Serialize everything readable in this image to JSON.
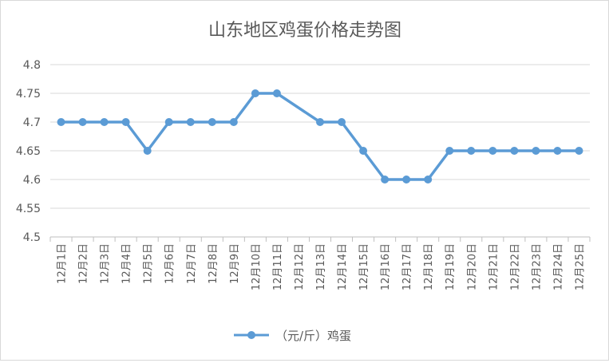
{
  "chart_data": {
    "type": "line",
    "title": "山东地区鸡蛋价格走势图",
    "xlabel": "",
    "ylabel": "",
    "categories": [
      "12月1日",
      "12月2日",
      "12月3日",
      "12月4日",
      "12月5日",
      "12月6日",
      "12月7日",
      "12月8日",
      "12月9日",
      "12月10日",
      "12月11日",
      "12月12日",
      "12月13日",
      "12月14日",
      "12月15日",
      "12月16日",
      "12月17日",
      "12月18日",
      "12月19日",
      "12月20日",
      "12月21日",
      "12月22日",
      "12月23日",
      "12月24日",
      "12月25日"
    ],
    "series": [
      {
        "name": "（元/斤）鸡蛋",
        "values": [
          4.7,
          4.7,
          4.7,
          4.7,
          4.65,
          4.7,
          4.7,
          4.7,
          4.7,
          4.75,
          4.75,
          null,
          4.7,
          4.7,
          4.65,
          4.6,
          4.6,
          4.6,
          4.65,
          4.65,
          4.65,
          4.65,
          4.65,
          4.65,
          4.65
        ]
      }
    ],
    "ylim": [
      4.5,
      4.8
    ],
    "yticks": [
      "4.5",
      "4.55",
      "4.6",
      "4.65",
      "4.7",
      "4.75",
      "4.8"
    ],
    "grid": true,
    "legend": "bottom",
    "colors": {
      "line": "#5b9bd5",
      "grid": "#d9d9d9",
      "text": "#595959"
    }
  }
}
